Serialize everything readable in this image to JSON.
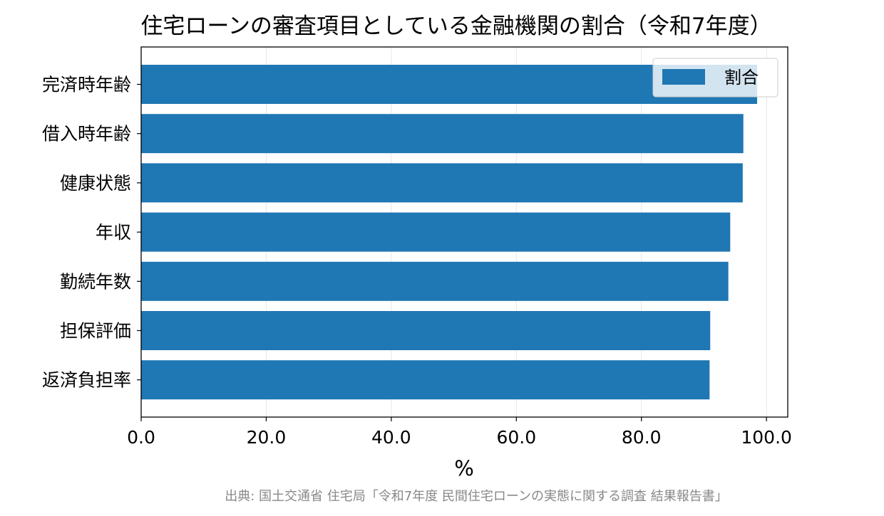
{
  "chart_data": {
    "type": "bar",
    "orientation": "horizontal",
    "title": "住宅ローンの審査項目としている金融機関の割合（令和7年度）",
    "xlabel": "%",
    "ylabel": "",
    "categories": [
      "完済時年齢",
      "借入時年齢",
      "健康状態",
      "年収",
      "勤続年数",
      "担保評価",
      "返済負担率"
    ],
    "series": [
      {
        "name": "割合",
        "values": [
          98.5,
          96.3,
          96.2,
          94.2,
          93.9,
          91.0,
          90.9
        ]
      }
    ],
    "xlim": [
      0,
      103.4
    ],
    "xticks": [
      "0.0",
      "20.0",
      "40.0",
      "60.0",
      "80.0",
      "100.0"
    ],
    "xtick_values": [
      0,
      20,
      40,
      60,
      80,
      100
    ],
    "grid": "vertical",
    "legend_position": "top-right",
    "bar_color": "#1f77b4",
    "source": "出典: 国土交通省 住宅局「令和7年度 民間住宅ローンの実態に関する調査 結果報告書」"
  }
}
